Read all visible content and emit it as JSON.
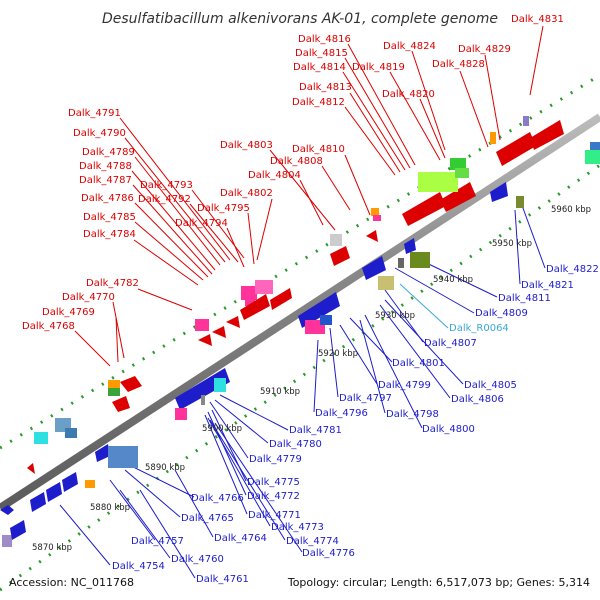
{
  "title": "Desulfatibacillum alkenivorans AK-01, complete genome",
  "footer": {
    "accession": "Accession: NC_011768",
    "stats": "Topology: circular; Length: 6,517,073 bp; Genes: 5,314"
  },
  "colors": {
    "forward": "#dd0000",
    "reverse": "#1d1dcc",
    "rna": "#3aa9d8",
    "backbone": "#777777",
    "tick": "#2a9a2a"
  },
  "kbp_ticks": [
    "5870 kbp",
    "5880 kbp",
    "5890 kbp",
    "5900 kbp",
    "5910 kbp",
    "5920 kbp",
    "5930 kbp",
    "5940 kbp",
    "5950 kbp",
    "5960 kbp"
  ],
  "labels_top": [
    "Dalk_4831",
    "Dalk_4824",
    "Dalk_4829",
    "Dalk_4816",
    "Dalk_4815",
    "Dalk_4814",
    "Dalk_4819",
    "Dalk_4828",
    "Dalk_4813",
    "Dalk_4820",
    "Dalk_4812",
    "Dalk_4791",
    "Dalk_4790",
    "Dalk_4803",
    "Dalk_4810",
    "Dalk_4789",
    "Dalk_4808",
    "Dalk_4788",
    "Dalk_4804",
    "Dalk_4787",
    "Dalk_4793",
    "Dalk_4786",
    "Dalk_4792",
    "Dalk_4802",
    "Dalk_4795",
    "Dalk_4785",
    "Dalk_4794",
    "Dalk_4784",
    "Dalk_4782",
    "Dalk_4770",
    "Dalk_4769",
    "Dalk_4768"
  ],
  "labels_bottom": [
    "Dalk_4822",
    "Dalk_4821",
    "Dalk_4811",
    "Dalk_4809",
    "Dalk_R0064",
    "Dalk_4807",
    "Dalk_4801",
    "Dalk_4805",
    "Dalk_4799",
    "Dalk_4806",
    "Dalk_4797",
    "Dalk_4798",
    "Dalk_4796",
    "Dalk_4800",
    "Dalk_4781",
    "Dalk_4780",
    "Dalk_4779",
    "Dalk_4775",
    "Dalk_4766",
    "Dalk_4772",
    "Dalk_4765",
    "Dalk_4771",
    "Dalk_4764",
    "Dalk_4773",
    "Dalk_4757",
    "Dalk_4774",
    "Dalk_4776",
    "Dalk_4760",
    "Dalk_4754",
    "Dalk_4761"
  ]
}
